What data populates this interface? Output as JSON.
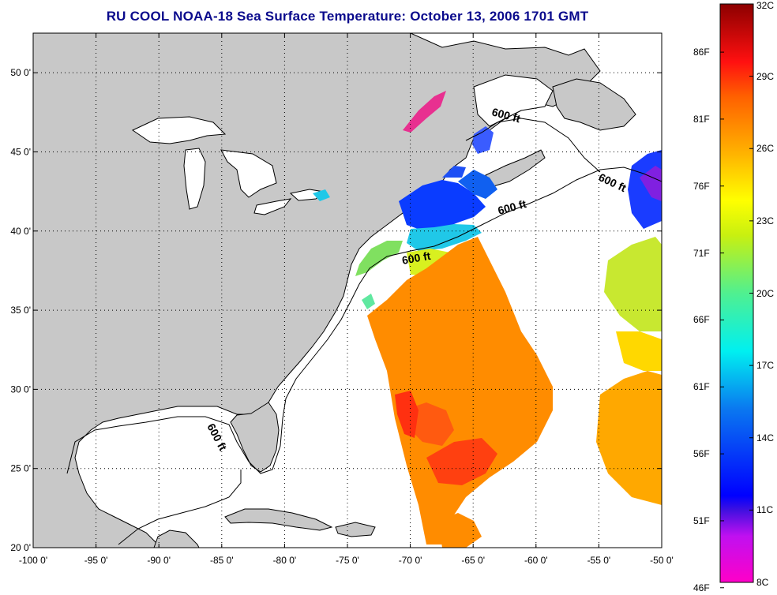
{
  "title": "RU COOL  NOAA-18  Sea Surface Temperature:  October 13, 2006 1701 GMT",
  "map": {
    "lon_ticks": [
      "-100 0'",
      "-95 0'",
      "-90 0'",
      "-85 0'",
      "-80 0'",
      "-75 0'",
      "-70 0'",
      "-65 0'",
      "-60 0'",
      "-55 0'",
      "-50 0'"
    ],
    "lat_ticks": [
      "50 0'",
      "45 0'",
      "40 0'",
      "35 0'",
      "30 0'",
      "25 0'",
      "20 0'"
    ],
    "lon_range": [
      -100,
      -50
    ],
    "lat_range": [
      20,
      52.5
    ],
    "contour_labels": [
      "600 ft",
      "600 ft",
      "600 ft",
      "600 ft",
      "600 ft"
    ],
    "colors": {
      "land": "#c8c8c8",
      "ocean_nodata": "#ffffff",
      "title": "#0a0a8c"
    }
  },
  "colorbar": {
    "fahrenheit": [
      "86F",
      "81F",
      "76F",
      "71F",
      "66F",
      "61F",
      "56F",
      "51F",
      "46F"
    ],
    "celsius": [
      "32C",
      "29C",
      "26C",
      "23C",
      "20C",
      "17C",
      "14C",
      "11C",
      "8C"
    ],
    "range_c": [
      8,
      32
    ]
  }
}
